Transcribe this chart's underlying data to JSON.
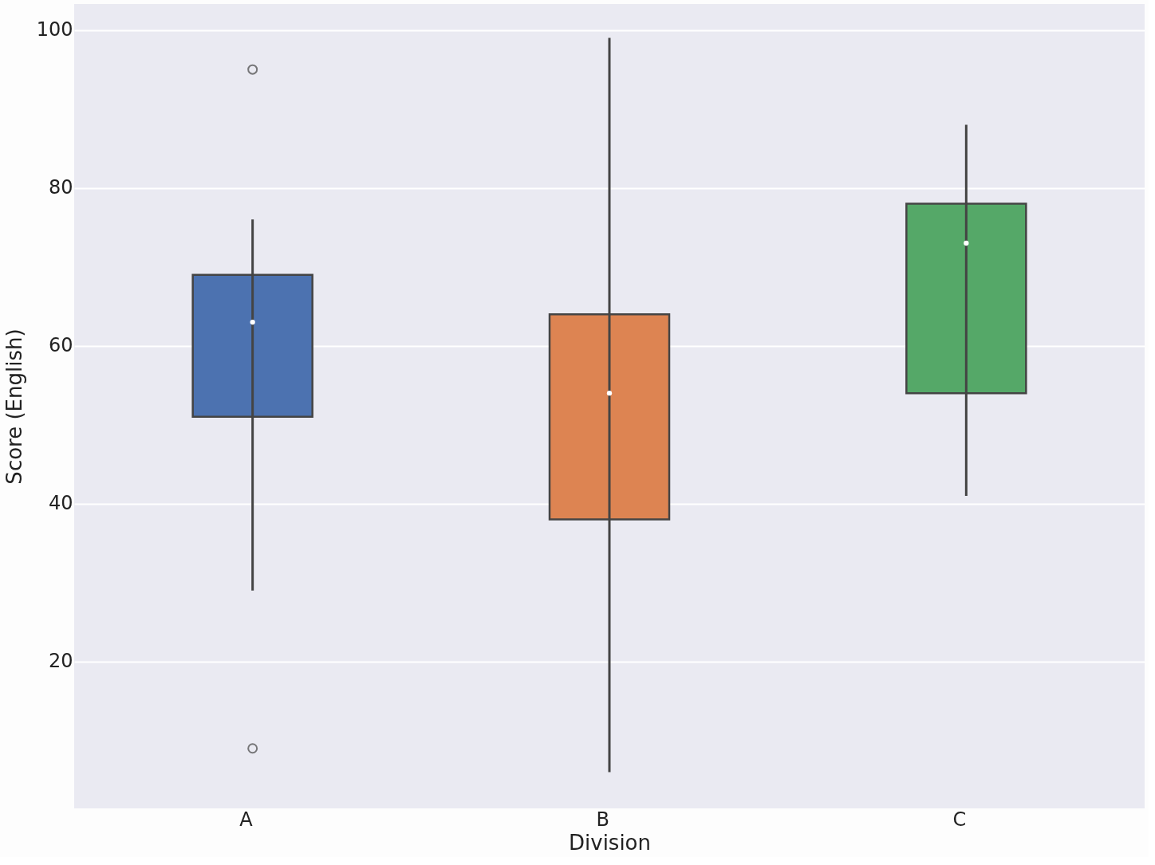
{
  "chart_data": {
    "type": "box",
    "xlabel": "Division",
    "ylabel": "Score (English)",
    "categories": [
      "A",
      "B",
      "C"
    ],
    "boxes": [
      {
        "low": 29,
        "q1": 51,
        "median": 63,
        "q3": 69,
        "high": 76,
        "outliers": [
          9,
          95
        ]
      },
      {
        "low": 6,
        "q1": 38,
        "median": 54,
        "q3": 64,
        "high": 99
      },
      {
        "low": 41,
        "q1": 54,
        "median": 73,
        "q3": 78,
        "high": 88
      }
    ],
    "colors": [
      "#4c72b0",
      "#dd8452",
      "#55a868"
    ],
    "ylim": [
      1.4,
      103.3
    ],
    "yticks": [
      20,
      40,
      60,
      80,
      100
    ],
    "grid": "y",
    "legend": false
  }
}
